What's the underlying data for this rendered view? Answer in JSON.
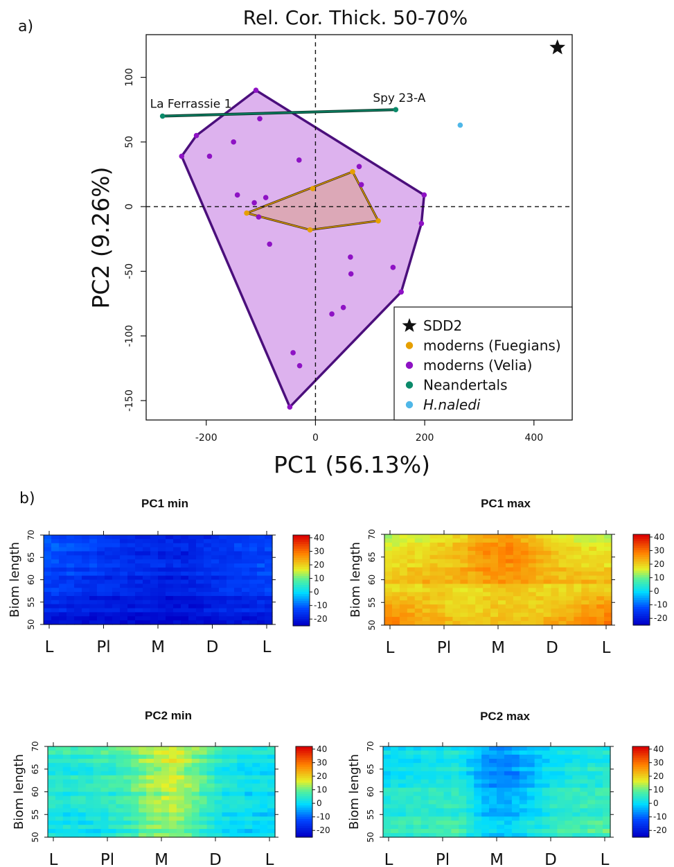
{
  "panel_labels": {
    "a": "a)",
    "b": "b)"
  },
  "chart_data": [
    {
      "type": "scatter",
      "title": "Rel. Cor. Thick. 50-70%",
      "xlabel": "PC1 (56.13%)",
      "ylabel": "PC2 (9.26%)",
      "xlim": [
        -310,
        470
      ],
      "ylim": [
        -165,
        133
      ],
      "xticks": [
        -200,
        0,
        200,
        400
      ],
      "yticks": [
        -150,
        -100,
        -50,
        0,
        50,
        100
      ],
      "reference_lines": {
        "x": 0,
        "y": 0,
        "style": "dashed"
      },
      "legend_position": "bottom-right",
      "colors": {
        "SDD2": "#111111",
        "fuegians": "#e69f00",
        "velia": "#8e12c4",
        "neandertals": "#0b8a6a",
        "naledi": "#4fb7e8",
        "velia_hull_fill": "#ddb2ee",
        "velia_hull_line": "#4b0f7c",
        "fuegian_hull_fill": "#dba6b0",
        "neandertal_line": "#0b3d2e"
      },
      "legend": [
        {
          "label": "SDD2",
          "marker": "star",
          "color": "#111111",
          "italic": false
        },
        {
          "label": "moderns (Fuegians)",
          "marker": "circle",
          "color": "#e69f00",
          "italic": false
        },
        {
          "label": "moderns (Velia)",
          "marker": "circle",
          "color": "#8e12c4",
          "italic": false
        },
        {
          "label": "Neandertals",
          "marker": "circle",
          "color": "#0b8a6a",
          "italic": false
        },
        {
          "label": "H.naledi",
          "marker": "circle",
          "color": "#4fb7e8",
          "italic": true
        }
      ],
      "series": [
        {
          "name": "SDD2",
          "marker": "star",
          "points": [
            [
              443,
              123
            ]
          ]
        },
        {
          "name": "moderns (Fuegians)",
          "marker": "circle",
          "points": [
            [
              -126,
              -5
            ],
            [
              -5,
              14
            ],
            [
              68,
              27
            ],
            [
              115,
              -11
            ],
            [
              -10,
              -18
            ]
          ],
          "hull": [
            [
              -126,
              -5
            ],
            [
              68,
              27
            ],
            [
              115,
              -11
            ],
            [
              -10,
              -18
            ]
          ]
        },
        {
          "name": "moderns (Velia)",
          "marker": "circle",
          "points": [
            [
              -109,
              90
            ],
            [
              -102,
              68
            ],
            [
              -218,
              55
            ],
            [
              -245,
              39
            ],
            [
              -194,
              39
            ],
            [
              -150,
              50
            ],
            [
              -30,
              36
            ],
            [
              80,
              31
            ],
            [
              84,
              17
            ],
            [
              -143,
              9
            ],
            [
              -91,
              7
            ],
            [
              -112,
              3
            ],
            [
              -104,
              -8
            ],
            [
              -84,
              -29
            ],
            [
              199,
              9
            ],
            [
              194,
              -13
            ],
            [
              64,
              -39
            ],
            [
              65,
              -52
            ],
            [
              142,
              -47
            ],
            [
              157,
              -66
            ],
            [
              51,
              -78
            ],
            [
              30,
              -83
            ],
            [
              -41,
              -113
            ],
            [
              -29,
              -123
            ],
            [
              -47,
              -155
            ]
          ],
          "hull": [
            [
              -109,
              90
            ],
            [
              199,
              9
            ],
            [
              194,
              -13
            ],
            [
              157,
              -66
            ],
            [
              -47,
              -155
            ],
            [
              -245,
              39
            ],
            [
              -218,
              55
            ]
          ]
        },
        {
          "name": "Neandertals",
          "marker": "circle",
          "connected": true,
          "points": [
            [
              -280,
              70
            ],
            [
              147,
              75
            ]
          ],
          "labels": [
            "La Ferrassie 1",
            "Spy 23-A"
          ]
        },
        {
          "name": "H.naledi",
          "marker": "circle",
          "points": [
            [
              265,
              63
            ]
          ]
        }
      ]
    },
    {
      "type": "heatmap",
      "title": "PC1 min",
      "ylabel": "Biom length",
      "xticks": [
        "L",
        "Pl",
        "M",
        "D",
        "L"
      ],
      "yticks": [
        50,
        55,
        60,
        65,
        70
      ],
      "ylim": [
        50,
        70
      ],
      "legend_ticks": [
        40,
        30,
        20,
        10,
        0,
        -10,
        -20
      ],
      "value_range": [
        -25,
        42
      ],
      "approx_values": [
        [
          -11,
          -12,
          -13,
          -16,
          -17,
          -17,
          -18,
          -15,
          -14,
          -13
        ],
        [
          -12,
          -14,
          -15,
          -17,
          -18,
          -19,
          -19,
          -16,
          -15,
          -14
        ],
        [
          -14,
          -15,
          -17,
          -18,
          -19,
          -20,
          -19,
          -17,
          -16,
          -15
        ],
        [
          -16,
          -17,
          -18,
          -19,
          -20,
          -21,
          -20,
          -18,
          -17,
          -16
        ],
        [
          -18,
          -19,
          -20,
          -20,
          -21,
          -22,
          -21,
          -20,
          -19,
          -18
        ],
        [
          -20,
          -20,
          -21,
          -21,
          -22,
          -22,
          -21,
          -20,
          -20,
          -19
        ]
      ]
    },
    {
      "type": "heatmap",
      "title": "PC1 max",
      "ylabel": "Biom length",
      "xticks": [
        "L",
        "Pl",
        "M",
        "D",
        "L"
      ],
      "yticks": [
        50,
        55,
        60,
        65,
        70
      ],
      "ylim": [
        50,
        70
      ],
      "legend_ticks": [
        40,
        30,
        20,
        10,
        0,
        -10,
        -20
      ],
      "value_range": [
        -25,
        42
      ],
      "approx_values": [
        [
          14,
          16,
          18,
          20,
          24,
          26,
          22,
          18,
          16,
          14
        ],
        [
          16,
          18,
          20,
          22,
          26,
          28,
          24,
          20,
          18,
          17
        ],
        [
          18,
          20,
          21,
          22,
          25,
          26,
          23,
          21,
          20,
          19
        ],
        [
          21,
          22,
          22,
          21,
          22,
          23,
          22,
          21,
          22,
          23
        ],
        [
          24,
          23,
          21,
          19,
          20,
          21,
          20,
          21,
          24,
          26
        ],
        [
          27,
          25,
          22,
          20,
          20,
          21,
          21,
          23,
          26,
          28
        ]
      ]
    },
    {
      "type": "heatmap",
      "title": "PC2 min",
      "ylabel": "Biom length",
      "xticks": [
        "L",
        "Pl",
        "M",
        "D",
        "L"
      ],
      "yticks": [
        50,
        55,
        60,
        65,
        70
      ],
      "ylim": [
        50,
        70
      ],
      "legend_ticks": [
        40,
        30,
        20,
        10,
        0,
        -10,
        -20
      ],
      "value_range": [
        -25,
        42
      ],
      "approx_values": [
        [
          5,
          5,
          6,
          8,
          12,
          15,
          10,
          4,
          2,
          2
        ],
        [
          4,
          4,
          5,
          7,
          13,
          16,
          10,
          3,
          1,
          1
        ],
        [
          3,
          3,
          4,
          6,
          12,
          14,
          9,
          2,
          0,
          0
        ],
        [
          2,
          2,
          3,
          5,
          11,
          13,
          8,
          1,
          0,
          -1
        ],
        [
          1,
          0,
          1,
          4,
          10,
          12,
          7,
          0,
          -1,
          -2
        ],
        [
          2,
          1,
          1,
          4,
          10,
          11,
          6,
          0,
          -1,
          -1
        ]
      ]
    },
    {
      "type": "heatmap",
      "title": "PC2 max",
      "ylabel": "Biom length",
      "xticks": [
        "L",
        "Pl",
        "M",
        "D",
        "L"
      ],
      "yticks": [
        50,
        55,
        60,
        65,
        70
      ],
      "ylim": [
        50,
        70
      ],
      "legend_ticks": [
        40,
        30,
        20,
        10,
        0,
        -10,
        -20
      ],
      "value_range": [
        -25,
        42
      ],
      "approx_values": [
        [
          0,
          0,
          1,
          2,
          -4,
          -6,
          -2,
          1,
          2,
          3
        ],
        [
          1,
          2,
          2,
          3,
          -6,
          -8,
          -3,
          2,
          3,
          4
        ],
        [
          2,
          3,
          3,
          4,
          -5,
          -7,
          -2,
          3,
          4,
          5
        ],
        [
          3,
          4,
          4,
          5,
          -4,
          -5,
          -1,
          4,
          5,
          6
        ],
        [
          4,
          5,
          5,
          6,
          -2,
          -3,
          1,
          5,
          6,
          7
        ],
        [
          5,
          6,
          6,
          7,
          0,
          -1,
          2,
          6,
          7,
          8
        ]
      ]
    }
  ]
}
